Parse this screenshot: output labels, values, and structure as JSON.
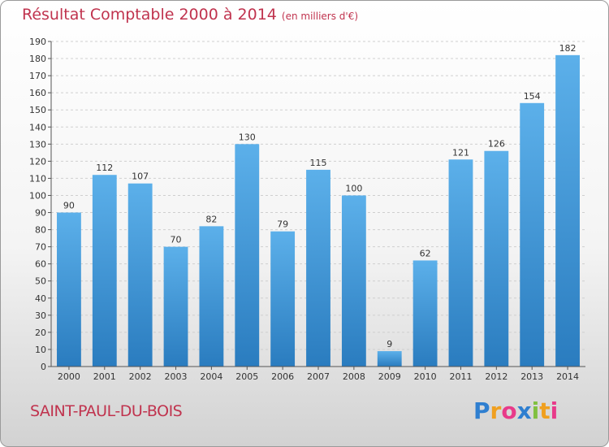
{
  "chart_data": {
    "type": "bar",
    "title": "Résultat Comptable 2000 à 2014",
    "subtitle": "(en milliers d'€)",
    "categories": [
      "2000",
      "2001",
      "2002",
      "2003",
      "2004",
      "2005",
      "2006",
      "2007",
      "2008",
      "2009",
      "2010",
      "2011",
      "2012",
      "2013",
      "2014"
    ],
    "values": [
      90,
      112,
      107,
      70,
      82,
      130,
      79,
      115,
      100,
      9,
      62,
      121,
      126,
      154,
      182
    ],
    "ylim": [
      0,
      190
    ],
    "yticks": [
      0,
      10,
      20,
      30,
      40,
      50,
      60,
      70,
      80,
      90,
      100,
      110,
      120,
      130,
      140,
      150,
      160,
      170,
      180,
      190
    ],
    "xlabel": "",
    "ylabel": "",
    "grid": true,
    "bar_color": "#3d94d6"
  },
  "footer": {
    "place": "SAINT-PAUL-DU-BOIS",
    "logo_letters": [
      "P",
      "r",
      "o",
      "x",
      "i",
      "t",
      "i"
    ],
    "logo_colors": [
      "#2f7fd0",
      "#f0a020",
      "#e83a8a",
      "#2f7fd0",
      "#80c040",
      "#f0a020",
      "#e83a8a"
    ]
  }
}
